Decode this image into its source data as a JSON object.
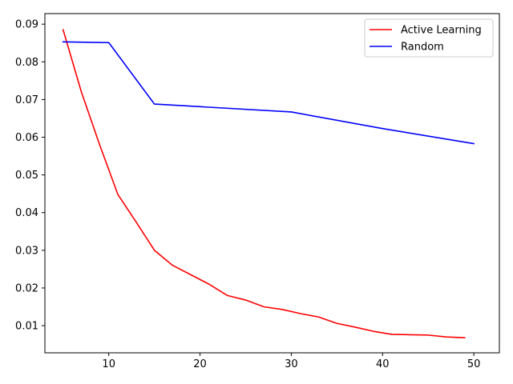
{
  "chart_data": {
    "type": "line",
    "title": "",
    "xlabel": "",
    "ylabel": "",
    "xlim": [
      3,
      52.8
    ],
    "ylim": [
      0.0028,
      0.0928
    ],
    "xticks": [
      10,
      20,
      30,
      40,
      50
    ],
    "yticks": [
      0.01,
      0.02,
      0.03,
      0.04,
      0.05,
      0.06,
      0.07,
      0.08,
      0.09
    ],
    "xtick_labels": [
      "10",
      "20",
      "30",
      "40",
      "50"
    ],
    "ytick_labels": [
      "0.01",
      "0.02",
      "0.03",
      "0.04",
      "0.05",
      "0.06",
      "0.07",
      "0.08",
      "0.09"
    ],
    "grid": false,
    "legend_position": "top-right",
    "series": [
      {
        "name": "Active Learning",
        "color": "#ff0000",
        "x": [
          5,
          7,
          9,
          11,
          13,
          15,
          17,
          19,
          21,
          23,
          25,
          27,
          29,
          31,
          33,
          35,
          37,
          39,
          41,
          43,
          45,
          47,
          49
        ],
        "y": [
          0.0885,
          0.072,
          0.058,
          0.0448,
          0.0375,
          0.03,
          0.026,
          0.0235,
          0.021,
          0.018,
          0.0168,
          0.015,
          0.0143,
          0.0132,
          0.0123,
          0.0106,
          0.0096,
          0.0085,
          0.0077,
          0.0076,
          0.0075,
          0.007,
          0.0068
        ]
      },
      {
        "name": "Random",
        "color": "#0000ff",
        "x": [
          5,
          10,
          15,
          20,
          30,
          40,
          50
        ],
        "y": [
          0.0853,
          0.0851,
          0.0688,
          0.0681,
          0.0667,
          0.0623,
          0.0583
        ]
      }
    ]
  }
}
